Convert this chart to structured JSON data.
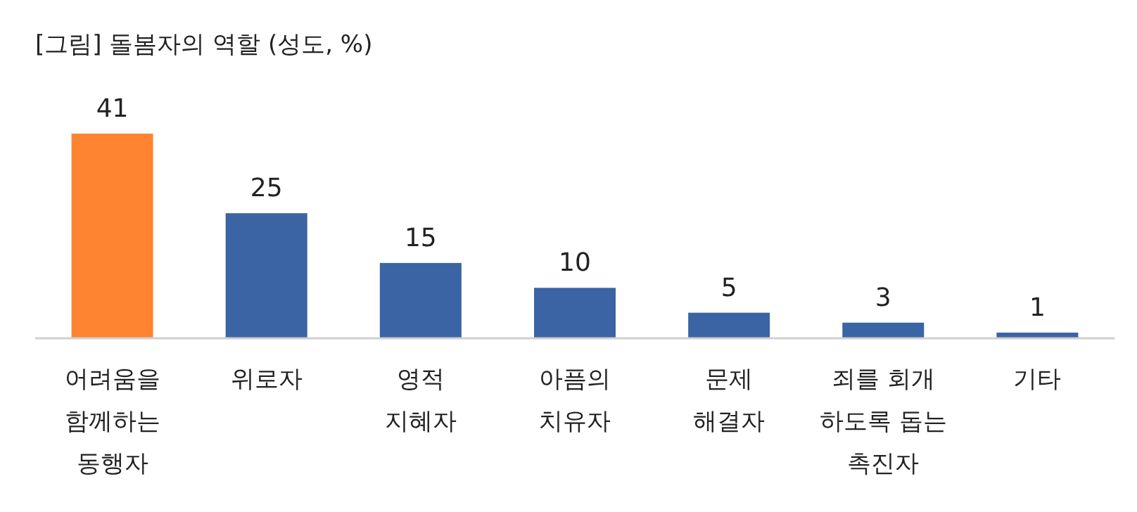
{
  "chart_data": {
    "type": "bar",
    "title": "[그림] 돌봄자의 역할 (성도, %)",
    "categories": [
      "어려움을\n함께하는\n동행자",
      "위로자",
      "영적\n지혜자",
      "아픔의\n치유자",
      "문제\n해결자",
      "죄를 회개\n하도록 돕는\n촉진자",
      "기타"
    ],
    "values": [
      41,
      25,
      15,
      10,
      5,
      3,
      1
    ],
    "colors": [
      "#fe8432",
      "#3a64a3",
      "#3a64a3",
      "#3a64a3",
      "#3a64a3",
      "#3a64a3",
      "#3a64a3"
    ],
    "data_labels": true
  }
}
